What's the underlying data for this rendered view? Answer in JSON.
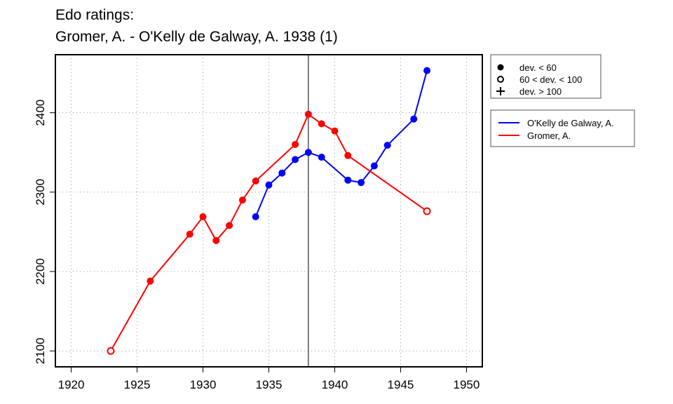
{
  "chart_data": {
    "type": "line",
    "title": [
      "Edo ratings:",
      "Gromer, A. - O'Kelly de Galway, A. 1938 (1)"
    ],
    "xlabel": "",
    "ylabel": "",
    "xlim": [
      1918.8,
      1951.2
    ],
    "ylim": [
      2080,
      2473
    ],
    "xticks": [
      1920,
      1925,
      1930,
      1935,
      1940,
      1945,
      1950
    ],
    "yticks": [
      2100,
      2200,
      2300,
      2400
    ],
    "grid": true,
    "vline": 1938,
    "legend_deviation": [
      {
        "marker": "filled-circle",
        "label": "dev. < 60"
      },
      {
        "marker": "open-circle",
        "label": "60 < dev. < 100"
      },
      {
        "marker": "plus",
        "label": "dev. > 100"
      }
    ],
    "legend_placement": "right",
    "series": [
      {
        "name": "O'Kelly de Galway, A.",
        "color": "#0000ff",
        "points": [
          {
            "x": 1934,
            "y": 2269,
            "m": "filled"
          },
          {
            "x": 1935,
            "y": 2309,
            "m": "filled"
          },
          {
            "x": 1936,
            "y": 2324,
            "m": "filled"
          },
          {
            "x": 1937,
            "y": 2341,
            "m": "filled"
          },
          {
            "x": 1938,
            "y": 2350,
            "m": "filled"
          },
          {
            "x": 1939,
            "y": 2344,
            "m": "filled"
          },
          {
            "x": 1941,
            "y": 2315,
            "m": "filled"
          },
          {
            "x": 1942,
            "y": 2312,
            "m": "filled"
          },
          {
            "x": 1943,
            "y": 2333,
            "m": "filled"
          },
          {
            "x": 1944,
            "y": 2359,
            "m": "filled"
          },
          {
            "x": 1946,
            "y": 2392,
            "m": "filled"
          },
          {
            "x": 1947,
            "y": 2453,
            "m": "filled"
          }
        ]
      },
      {
        "name": "Gromer, A.",
        "color": "#ff0000",
        "points": [
          {
            "x": 1923,
            "y": 2100,
            "m": "open"
          },
          {
            "x": 1926,
            "y": 2188,
            "m": "filled"
          },
          {
            "x": 1929,
            "y": 2247,
            "m": "filled"
          },
          {
            "x": 1930,
            "y": 2269,
            "m": "filled"
          },
          {
            "x": 1931,
            "y": 2239,
            "m": "filled"
          },
          {
            "x": 1932,
            "y": 2258,
            "m": "filled"
          },
          {
            "x": 1933,
            "y": 2290,
            "m": "filled"
          },
          {
            "x": 1934,
            "y": 2314,
            "m": "filled"
          },
          {
            "x": 1937,
            "y": 2360,
            "m": "filled"
          },
          {
            "x": 1938,
            "y": 2398,
            "m": "filled"
          },
          {
            "x": 1939,
            "y": 2386,
            "m": "filled"
          },
          {
            "x": 1940,
            "y": 2377,
            "m": "filled"
          },
          {
            "x": 1941,
            "y": 2346,
            "m": "filled"
          },
          {
            "x": 1947,
            "y": 2276,
            "m": "open"
          }
        ]
      }
    ]
  }
}
